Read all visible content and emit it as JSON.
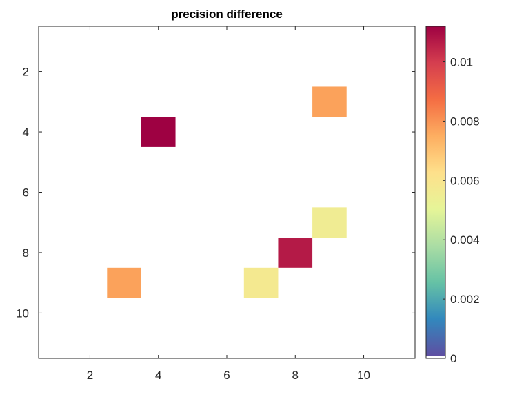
{
  "chart_data": {
    "type": "heatmap",
    "title": "precision difference",
    "xlabel": "",
    "ylabel": "",
    "xlim": [
      0.5,
      11.5
    ],
    "ylim": [
      0.5,
      11.5
    ],
    "y_reversed": true,
    "x_ticks": [
      2,
      4,
      6,
      8,
      10
    ],
    "y_ticks": [
      2,
      4,
      6,
      8,
      10
    ],
    "x_tick_labels": [
      "2",
      "4",
      "6",
      "8",
      "10"
    ],
    "y_tick_labels": [
      "2",
      "4",
      "6",
      "8",
      "10"
    ],
    "cells": [
      {
        "x": 9,
        "y": 3,
        "value": 0.0077
      },
      {
        "x": 4,
        "y": 4,
        "value": 0.0112
      },
      {
        "x": 9,
        "y": 7,
        "value": 0.0055
      },
      {
        "x": 8,
        "y": 8,
        "value": 0.0107
      },
      {
        "x": 3,
        "y": 9,
        "value": 0.0077
      },
      {
        "x": 7,
        "y": 9,
        "value": 0.0057
      }
    ],
    "colorbar": {
      "colormap": "spectral",
      "min": 0,
      "max": 0.0112,
      "ticks": [
        0,
        0.002,
        0.004,
        0.006,
        0.008,
        0.01
      ],
      "tick_labels": [
        "0",
        "0.002",
        "0.004",
        "0.006",
        "0.008",
        "0.01"
      ],
      "colors": [
        "#ffffff",
        "#5e4fa2",
        "#3288bd",
        "#66c2a5",
        "#abdda4",
        "#e6f598",
        "#fee08b",
        "#fdae61",
        "#f46d43",
        "#d53e4f",
        "#9e0142"
      ]
    },
    "grid": false
  }
}
